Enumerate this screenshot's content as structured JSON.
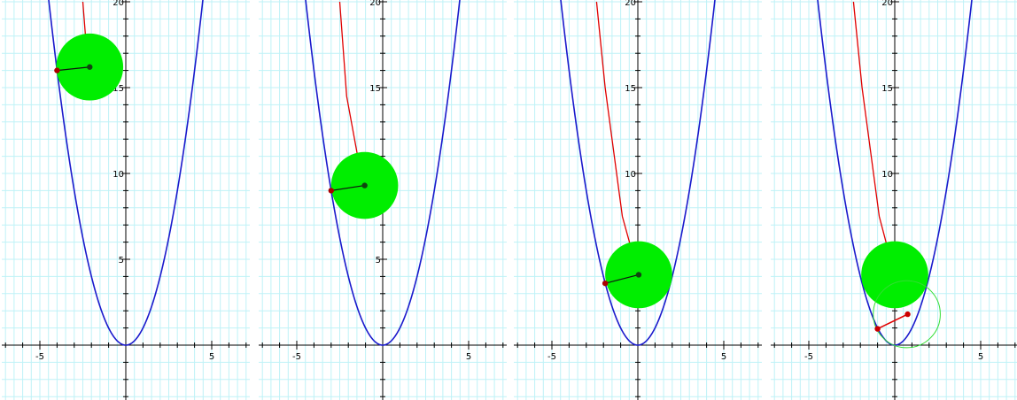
{
  "chart_data": [
    {
      "type": "line",
      "xlim": [
        -7,
        7
      ],
      "ylim": [
        -3.2,
        20
      ],
      "grid": true,
      "x_ticks": [
        -5,
        5
      ],
      "y_ticks": [
        5,
        10,
        15,
        20
      ],
      "x_tick_labels": [
        "-5",
        "5"
      ],
      "y_tick_labels": [
        "5",
        "10",
        "15",
        "20"
      ],
      "parabola": "y = x^2",
      "trail": [
        [
          -2.5,
          20
        ],
        [
          -2.3,
          17.4
        ],
        [
          -2.1,
          16.2
        ]
      ],
      "filled_circle": {
        "center": [
          -2.1,
          16.2
        ],
        "radius": 1.95
      },
      "contact_point": [
        -4.0,
        16.0
      ],
      "extra": null
    },
    {
      "type": "line",
      "xlim": [
        -7,
        7
      ],
      "ylim": [
        -3.2,
        20
      ],
      "grid": true,
      "x_ticks": [
        -5,
        5
      ],
      "y_ticks": [
        5,
        10,
        15,
        20
      ],
      "x_tick_labels": [
        "-5",
        "5"
      ],
      "y_tick_labels": [
        "5",
        "10",
        "15",
        "20"
      ],
      "parabola": "y = x^2",
      "trail": [
        [
          -2.5,
          20
        ],
        [
          -2.1,
          14.5
        ],
        [
          -1.4,
          10.7
        ],
        [
          -1.05,
          9.3
        ]
      ],
      "filled_circle": {
        "center": [
          -1.05,
          9.3
        ],
        "radius": 1.95
      },
      "contact_point": [
        -3.0,
        9.0
      ],
      "extra": null
    },
    {
      "type": "line",
      "xlim": [
        -7,
        7
      ],
      "ylim": [
        -3.2,
        20
      ],
      "grid": true,
      "x_ticks": [
        -5,
        5
      ],
      "y_ticks": [
        5,
        10,
        15,
        20
      ],
      "x_tick_labels": [
        "-5",
        "5"
      ],
      "y_tick_labels": [
        "5",
        "10",
        "15",
        "20"
      ],
      "parabola": "y = x^2",
      "trail": [
        [
          -2.4,
          20
        ],
        [
          -1.9,
          15
        ],
        [
          -0.9,
          7.5
        ],
        [
          -0.35,
          5.5
        ],
        [
          0.05,
          4.1
        ]
      ],
      "filled_circle": {
        "center": [
          0.05,
          4.1
        ],
        "radius": 1.95
      },
      "contact_point": [
        -1.9,
        3.6
      ],
      "extra": null
    },
    {
      "type": "line",
      "xlim": [
        -7,
        7
      ],
      "ylim": [
        -3.2,
        20
      ],
      "grid": true,
      "x_ticks": [
        -5,
        5
      ],
      "y_ticks": [
        5,
        10,
        15,
        20
      ],
      "x_tick_labels": [
        "-5",
        "5"
      ],
      "y_tick_labels": [
        "5",
        "10",
        "15",
        "20"
      ],
      "parabola": "y = x^2",
      "trail": [
        [
          -2.4,
          20
        ],
        [
          -1.9,
          15
        ],
        [
          -0.9,
          7.5
        ],
        [
          -0.3,
          5.2
        ],
        [
          0,
          4.1
        ]
      ],
      "filled_circle": {
        "center": [
          0,
          4.1
        ],
        "radius": 1.95
      },
      "contact_point": null,
      "extra": {
        "outline_circle": {
          "center": [
            0.7,
            1.8
          ],
          "radius": 1.95
        },
        "red_segment": [
          [
            -1.0,
            0.95
          ],
          [
            0.75,
            1.8
          ]
        ]
      }
    }
  ]
}
